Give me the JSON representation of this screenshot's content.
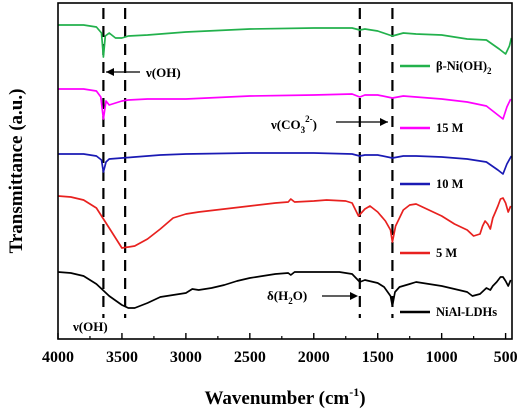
{
  "chart_data": {
    "type": "line",
    "xlabel": "Wavenumber (cm",
    "xlabel_sup": "-1",
    "xlabel_end": ")",
    "ylabel": "Transmittance (a.u.)",
    "xlim": [
      4000,
      450
    ],
    "x_reversed": true,
    "x_ticks": [
      4000,
      3500,
      3000,
      2500,
      2000,
      1500,
      1000,
      500
    ],
    "y_ticks_shown": false,
    "grid": false,
    "legend": "right",
    "series": [
      {
        "name": "β-Ni(OH)",
        "name_sub": "2",
        "color": "#22b14c",
        "baseline": 24,
        "points": [
          [
            4000,
            1
          ],
          [
            3800,
            1
          ],
          [
            3700,
            3
          ],
          [
            3660,
            9
          ],
          [
            3645,
            33
          ],
          [
            3630,
            12
          ],
          [
            3600,
            9
          ],
          [
            3550,
            14
          ],
          [
            3500,
            14
          ],
          [
            3450,
            12
          ],
          [
            3300,
            11
          ],
          [
            3000,
            8
          ],
          [
            2500,
            5
          ],
          [
            2000,
            4
          ],
          [
            1700,
            4
          ],
          [
            1640,
            6
          ],
          [
            1600,
            5
          ],
          [
            1500,
            7
          ],
          [
            1385,
            12
          ],
          [
            1300,
            9
          ],
          [
            1200,
            10
          ],
          [
            1000,
            11
          ],
          [
            800,
            15
          ],
          [
            650,
            16
          ],
          [
            550,
            25
          ],
          [
            500,
            30
          ],
          [
            470,
            22
          ],
          [
            455,
            14
          ]
        ]
      },
      {
        "name": "15 M",
        "color": "#ff00ff",
        "baseline": 89,
        "points": [
          [
            4000,
            0
          ],
          [
            3800,
            0
          ],
          [
            3700,
            2
          ],
          [
            3665,
            8
          ],
          [
            3645,
            30
          ],
          [
            3625,
            12
          ],
          [
            3600,
            16
          ],
          [
            3550,
            14
          ],
          [
            3500,
            12
          ],
          [
            3450,
            11
          ],
          [
            3300,
            10
          ],
          [
            3000,
            10
          ],
          [
            2500,
            7
          ],
          [
            2000,
            6
          ],
          [
            1700,
            5
          ],
          [
            1640,
            8
          ],
          [
            1600,
            6
          ],
          [
            1500,
            6
          ],
          [
            1385,
            9
          ],
          [
            1300,
            7
          ],
          [
            1200,
            8
          ],
          [
            1000,
            10
          ],
          [
            800,
            13
          ],
          [
            650,
            17
          ],
          [
            560,
            26
          ],
          [
            520,
            30
          ],
          [
            490,
            18
          ],
          [
            460,
            10
          ]
        ]
      },
      {
        "name": "10 M",
        "color": "#1a1ab4",
        "baseline": 154,
        "points": [
          [
            4000,
            0
          ],
          [
            3800,
            0
          ],
          [
            3700,
            2
          ],
          [
            3660,
            6
          ],
          [
            3645,
            18
          ],
          [
            3625,
            8
          ],
          [
            3600,
            5
          ],
          [
            3500,
            4
          ],
          [
            3400,
            3
          ],
          [
            3200,
            1
          ],
          [
            3000,
            0
          ],
          [
            2500,
            -1
          ],
          [
            2000,
            -1
          ],
          [
            1700,
            0
          ],
          [
            1640,
            2
          ],
          [
            1600,
            1
          ],
          [
            1500,
            1
          ],
          [
            1385,
            4
          ],
          [
            1300,
            2
          ],
          [
            1200,
            2
          ],
          [
            1000,
            3
          ],
          [
            800,
            5
          ],
          [
            650,
            8
          ],
          [
            560,
            16
          ],
          [
            520,
            20
          ],
          [
            490,
            10
          ],
          [
            455,
            2
          ]
        ]
      },
      {
        "name": "5 M",
        "color": "#e8211f",
        "baseline": 196,
        "points": [
          [
            4000,
            0
          ],
          [
            3900,
            1
          ],
          [
            3800,
            4
          ],
          [
            3700,
            12
          ],
          [
            3600,
            32
          ],
          [
            3500,
            52
          ],
          [
            3400,
            50
          ],
          [
            3300,
            43
          ],
          [
            3200,
            33
          ],
          [
            3100,
            22
          ],
          [
            3000,
            18
          ],
          [
            2900,
            16
          ],
          [
            2700,
            13
          ],
          [
            2500,
            10
          ],
          [
            2300,
            7
          ],
          [
            2200,
            6
          ],
          [
            2180,
            3
          ],
          [
            2150,
            6
          ],
          [
            2000,
            5
          ],
          [
            1900,
            4
          ],
          [
            1750,
            5
          ],
          [
            1700,
            7
          ],
          [
            1650,
            20
          ],
          [
            1600,
            13
          ],
          [
            1560,
            10
          ],
          [
            1500,
            16
          ],
          [
            1440,
            25
          ],
          [
            1400,
            34
          ],
          [
            1385,
            46
          ],
          [
            1360,
            30
          ],
          [
            1300,
            14
          ],
          [
            1250,
            9
          ],
          [
            1200,
            8
          ],
          [
            1100,
            14
          ],
          [
            1000,
            20
          ],
          [
            900,
            28
          ],
          [
            800,
            34
          ],
          [
            750,
            40
          ],
          [
            700,
            38
          ],
          [
            680,
            30
          ],
          [
            660,
            25
          ],
          [
            640,
            28
          ],
          [
            620,
            33
          ],
          [
            600,
            22
          ],
          [
            580,
            16
          ],
          [
            560,
            10
          ],
          [
            540,
            3
          ],
          [
            520,
            2
          ],
          [
            500,
            7
          ],
          [
            480,
            16
          ],
          [
            460,
            10
          ]
        ]
      },
      {
        "name": "NiAl-LDHs",
        "color": "#000000",
        "baseline": 272,
        "points": [
          [
            4000,
            0
          ],
          [
            3900,
            1
          ],
          [
            3800,
            4
          ],
          [
            3700,
            12
          ],
          [
            3600,
            24
          ],
          [
            3500,
            33
          ],
          [
            3450,
            36
          ],
          [
            3400,
            36
          ],
          [
            3300,
            31
          ],
          [
            3200,
            25
          ],
          [
            3100,
            23
          ],
          [
            3000,
            21
          ],
          [
            2950,
            17
          ],
          [
            2900,
            18
          ],
          [
            2800,
            16
          ],
          [
            2700,
            13
          ],
          [
            2600,
            9
          ],
          [
            2500,
            6
          ],
          [
            2400,
            4
          ],
          [
            2300,
            2
          ],
          [
            2200,
            1
          ],
          [
            2180,
            3
          ],
          [
            2150,
            0
          ],
          [
            2000,
            0
          ],
          [
            1900,
            0
          ],
          [
            1800,
            0
          ],
          [
            1700,
            2
          ],
          [
            1640,
            10
          ],
          [
            1600,
            8
          ],
          [
            1500,
            11
          ],
          [
            1450,
            15
          ],
          [
            1400,
            24
          ],
          [
            1385,
            34
          ],
          [
            1365,
            20
          ],
          [
            1330,
            15
          ],
          [
            1250,
            12
          ],
          [
            1200,
            10
          ],
          [
            1100,
            12
          ],
          [
            1000,
            14
          ],
          [
            900,
            17
          ],
          [
            800,
            20
          ],
          [
            760,
            24
          ],
          [
            700,
            22
          ],
          [
            650,
            16
          ],
          [
            620,
            18
          ],
          [
            600,
            14
          ],
          [
            570,
            10
          ],
          [
            540,
            5
          ],
          [
            520,
            5
          ],
          [
            500,
            9
          ],
          [
            480,
            14
          ],
          [
            460,
            8
          ]
        ]
      }
    ],
    "dashed_lines": [
      3645,
      3475,
      1640,
      1385
    ],
    "annotations": {
      "v_oh_top": "ν(OH)",
      "v_co3_main": "ν(CO",
      "v_co3_sub": "3",
      "v_co3_sup": "2-",
      "v_co3_end": ")",
      "delta_h2o_main": "δ(H",
      "delta_h2o_sub": "2",
      "delta_h2o_end": "O)",
      "v_oh_bottom": "ν(OH)"
    }
  }
}
